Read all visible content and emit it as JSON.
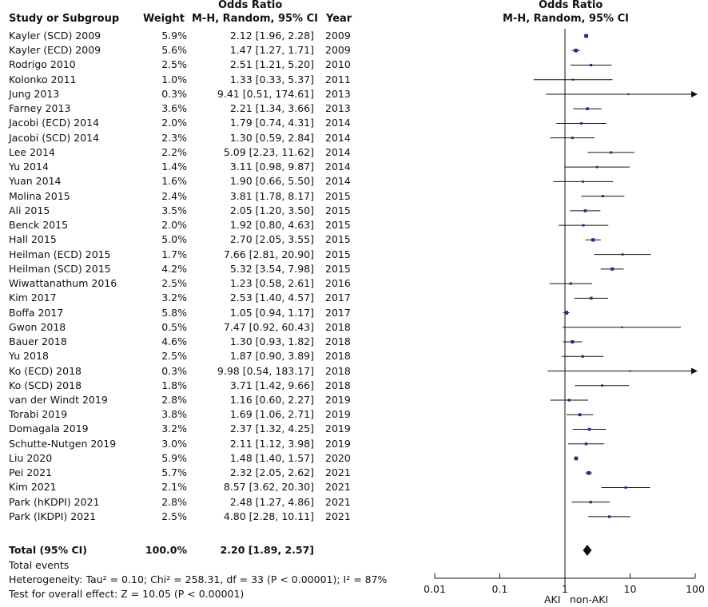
{
  "headers": {
    "group_title": "Odds Ratio",
    "study": "Study or Subgroup",
    "weight": "Weight",
    "method": "M-H, Random, 95% CI",
    "year": "Year",
    "plot_title": "Odds Ratio",
    "plot_method": "M-H, Random, 95% CI"
  },
  "chart_data": {
    "type": "forest",
    "x_scale": "log",
    "xlim": [
      0.01,
      100
    ],
    "ticks": [
      "0.01",
      "0.1",
      "1",
      "10",
      "100"
    ],
    "tick_values": [
      0.01,
      0.1,
      1,
      10,
      100
    ],
    "left_label": "AKI",
    "right_label": "non-AKI",
    "studies": [
      {
        "name": "Kayler (SCD) 2009",
        "weight": "5.9%",
        "ci_text": "2.12 [1.96, 2.28]",
        "year": "2009",
        "or": 2.12,
        "lo": 1.96,
        "hi": 2.28
      },
      {
        "name": "Kayler (ECD) 2009",
        "weight": "5.6%",
        "ci_text": "1.47 [1.27, 1.71]",
        "year": "2009",
        "or": 1.47,
        "lo": 1.27,
        "hi": 1.71
      },
      {
        "name": "Rodrigo 2010",
        "weight": "2.5%",
        "ci_text": "2.51 [1.21, 5.20]",
        "year": "2010",
        "or": 2.51,
        "lo": 1.21,
        "hi": 5.2
      },
      {
        "name": "Kolonko 2011",
        "weight": "1.0%",
        "ci_text": "1.33 [0.33, 5.37]",
        "year": "2011",
        "or": 1.33,
        "lo": 0.33,
        "hi": 5.37
      },
      {
        "name": "Jung 2013",
        "weight": "0.3%",
        "ci_text": "9.41 [0.51, 174.61]",
        "year": "2013",
        "or": 9.41,
        "lo": 0.51,
        "hi": 174.61
      },
      {
        "name": "Farney 2013",
        "weight": "3.6%",
        "ci_text": "2.21 [1.34, 3.66]",
        "year": "2013",
        "or": 2.21,
        "lo": 1.34,
        "hi": 3.66
      },
      {
        "name": "Jacobi (ECD) 2014",
        "weight": "2.0%",
        "ci_text": "1.79 [0.74, 4.31]",
        "year": "2014",
        "or": 1.79,
        "lo": 0.74,
        "hi": 4.31
      },
      {
        "name": "Jacobi (SCD) 2014",
        "weight": "2.3%",
        "ci_text": "1.30 [0.59, 2.84]",
        "year": "2014",
        "or": 1.3,
        "lo": 0.59,
        "hi": 2.84
      },
      {
        "name": "Lee 2014",
        "weight": "2.2%",
        "ci_text": "5.09 [2.23, 11.62]",
        "year": "2014",
        "or": 5.09,
        "lo": 2.23,
        "hi": 11.62
      },
      {
        "name": "Yu 2014",
        "weight": "1.4%",
        "ci_text": "3.11 [0.98, 9.87]",
        "year": "2014",
        "or": 3.11,
        "lo": 0.98,
        "hi": 9.87
      },
      {
        "name": "Yuan 2014",
        "weight": "1.6%",
        "ci_text": "1.90 [0.66, 5.50]",
        "year": "2014",
        "or": 1.9,
        "lo": 0.66,
        "hi": 5.5
      },
      {
        "name": "Molina 2015",
        "weight": "2.4%",
        "ci_text": "3.81 [1.78, 8.17]",
        "year": "2015",
        "or": 3.81,
        "lo": 1.78,
        "hi": 8.17
      },
      {
        "name": "Ali 2015",
        "weight": "3.5%",
        "ci_text": "2.05 [1.20, 3.50]",
        "year": "2015",
        "or": 2.05,
        "lo": 1.2,
        "hi": 3.5
      },
      {
        "name": "Benck 2015",
        "weight": "2.0%",
        "ci_text": "1.92 [0.80, 4.63]",
        "year": "2015",
        "or": 1.92,
        "lo": 0.8,
        "hi": 4.63
      },
      {
        "name": "Hall 2015",
        "weight": "5.0%",
        "ci_text": "2.70 [2.05, 3.55]",
        "year": "2015",
        "or": 2.7,
        "lo": 2.05,
        "hi": 3.55
      },
      {
        "name": "Heilman (ECD) 2015",
        "weight": "1.7%",
        "ci_text": "7.66 [2.81, 20.90]",
        "year": "2015",
        "or": 7.66,
        "lo": 2.81,
        "hi": 20.9
      },
      {
        "name": "Heilman (SCD) 2015",
        "weight": "4.2%",
        "ci_text": "5.32 [3.54, 7.98]",
        "year": "2015",
        "or": 5.32,
        "lo": 3.54,
        "hi": 7.98
      },
      {
        "name": "Wiwattanathum 2016",
        "weight": "2.5%",
        "ci_text": "1.23 [0.58, 2.61]",
        "year": "2016",
        "or": 1.23,
        "lo": 0.58,
        "hi": 2.61
      },
      {
        "name": "Kim 2017",
        "weight": "3.2%",
        "ci_text": "2.53 [1.40, 4.57]",
        "year": "2017",
        "or": 2.53,
        "lo": 1.4,
        "hi": 4.57
      },
      {
        "name": "Boffa 2017",
        "weight": "5.8%",
        "ci_text": "1.05 [0.94, 1.17]",
        "year": "2017",
        "or": 1.05,
        "lo": 0.94,
        "hi": 1.17
      },
      {
        "name": "Gwon 2018",
        "weight": "0.5%",
        "ci_text": "7.47 [0.92, 60.43]",
        "year": "2018",
        "or": 7.47,
        "lo": 0.92,
        "hi": 60.43
      },
      {
        "name": "Bauer 2018",
        "weight": "4.6%",
        "ci_text": "1.30 [0.93, 1.82]",
        "year": "2018",
        "or": 1.3,
        "lo": 0.93,
        "hi": 1.82
      },
      {
        "name": "Yu 2018",
        "weight": "2.5%",
        "ci_text": "1.87 [0.90, 3.89]",
        "year": "2018",
        "or": 1.87,
        "lo": 0.9,
        "hi": 3.89
      },
      {
        "name": "Ko (ECD) 2018",
        "weight": "0.3%",
        "ci_text": "9.98 [0.54, 183.17]",
        "year": "2018",
        "or": 9.98,
        "lo": 0.54,
        "hi": 183.17
      },
      {
        "name": "Ko (SCD) 2018",
        "weight": "1.8%",
        "ci_text": "3.71 [1.42, 9.66]",
        "year": "2018",
        "or": 3.71,
        "lo": 1.42,
        "hi": 9.66
      },
      {
        "name": "van der Windt 2019",
        "weight": "2.8%",
        "ci_text": "1.16 [0.60, 2.27]",
        "year": "2019",
        "or": 1.16,
        "lo": 0.6,
        "hi": 2.27
      },
      {
        "name": "Torabi 2019",
        "weight": "3.8%",
        "ci_text": "1.69 [1.06, 2.71]",
        "year": "2019",
        "or": 1.69,
        "lo": 1.06,
        "hi": 2.71
      },
      {
        "name": "Domagala 2019",
        "weight": "3.2%",
        "ci_text": "2.37 [1.32, 4.25]",
        "year": "2019",
        "or": 2.37,
        "lo": 1.32,
        "hi": 4.25
      },
      {
        "name": "Schutte-Nutgen 2019",
        "weight": "3.0%",
        "ci_text": "2.11 [1.12, 3.98]",
        "year": "2019",
        "or": 2.11,
        "lo": 1.12,
        "hi": 3.98
      },
      {
        "name": "Liu 2020",
        "weight": "5.9%",
        "ci_text": "1.48 [1.40, 1.57]",
        "year": "2020",
        "or": 1.48,
        "lo": 1.4,
        "hi": 1.57
      },
      {
        "name": "Pei 2021",
        "weight": "5.7%",
        "ci_text": "2.32 [2.05, 2.62]",
        "year": "2021",
        "or": 2.32,
        "lo": 2.05,
        "hi": 2.62
      },
      {
        "name": "Kim 2021",
        "weight": "2.1%",
        "ci_text": "8.57 [3.62, 20.30]",
        "year": "2021",
        "or": 8.57,
        "lo": 3.62,
        "hi": 20.3
      },
      {
        "name": "Park (hKDPI) 2021",
        "weight": "2.8%",
        "ci_text": "2.48 [1.27, 4.86]",
        "year": "2021",
        "or": 2.48,
        "lo": 1.27,
        "hi": 4.86
      },
      {
        "name": "Park (lKDPI) 2021",
        "weight": "2.5%",
        "ci_text": "4.80 [2.28, 10.11]",
        "year": "2021",
        "or": 4.8,
        "lo": 2.28,
        "hi": 10.11
      }
    ],
    "total": {
      "name": "Total (95% CI)",
      "weight": "100.0%",
      "ci_text": "2.20 [1.89, 2.57]",
      "or": 2.2,
      "lo": 1.89,
      "hi": 2.57
    }
  },
  "footer": {
    "events": "Total events",
    "heterogeneity": "Heterogeneity: Tau² = 0.10; Chi² = 258.31, df = 33 (P < 0.00001); I² = 87%",
    "overall": "Test for overall effect: Z = 10.05 (P < 0.00001)"
  },
  "colors": {
    "marker": "#1f2a8a",
    "text": "#111111"
  }
}
